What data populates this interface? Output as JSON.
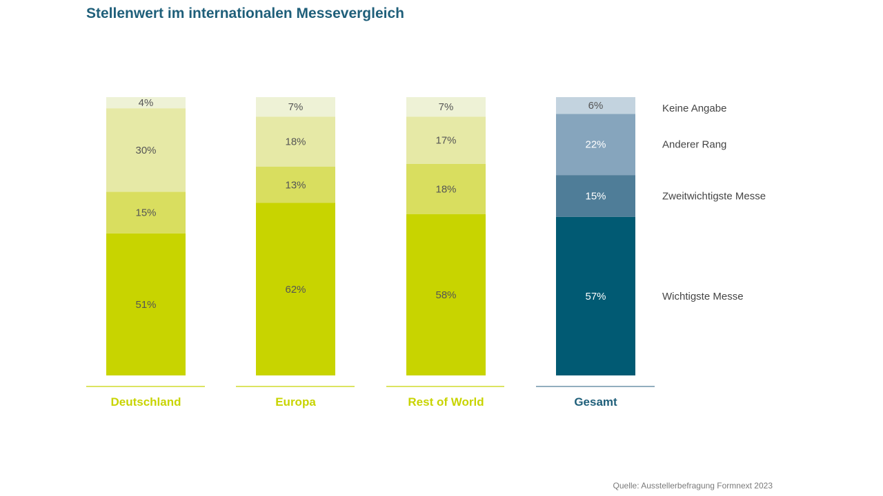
{
  "chart_data": {
    "type": "bar",
    "stacked": true,
    "normalized_percent": true,
    "title": "Stellenwert im internationalen Messevergleich",
    "categories": [
      "Deutschland",
      "Europa",
      "Rest of World",
      "Gesamt"
    ],
    "series": [
      {
        "name": "Wichtigste Messe",
        "values": [
          51,
          62,
          58,
          57
        ],
        "labels": [
          "51%",
          "62%",
          "58%",
          "57%"
        ]
      },
      {
        "name": "Zweitwichtigste Messe",
        "values": [
          15,
          13,
          18,
          15
        ],
        "labels": [
          "15%",
          "13%",
          "18%",
          "15%"
        ]
      },
      {
        "name": "Anderer Rang",
        "values": [
          30,
          18,
          17,
          22
        ],
        "labels": [
          "30%",
          "18%",
          "17%",
          "22%"
        ]
      },
      {
        "name": "Keine Angabe",
        "values": [
          4,
          7,
          7,
          6
        ],
        "labels": [
          "4%",
          "7%",
          "7%",
          "6%"
        ]
      }
    ],
    "legend_position": "right",
    "colors": {
      "green": [
        "#c8d400",
        "#d9de5f",
        "#e6e9a6",
        "#eef2d6"
      ],
      "blue": [
        "#015a73",
        "#4f7d98",
        "#86a5bd",
        "#c3d3df"
      ],
      "category_green": "#c8d400",
      "category_blue": "#1f5f7a"
    }
  },
  "source": "Quelle: Ausstellerbefragung Formnext 2023"
}
